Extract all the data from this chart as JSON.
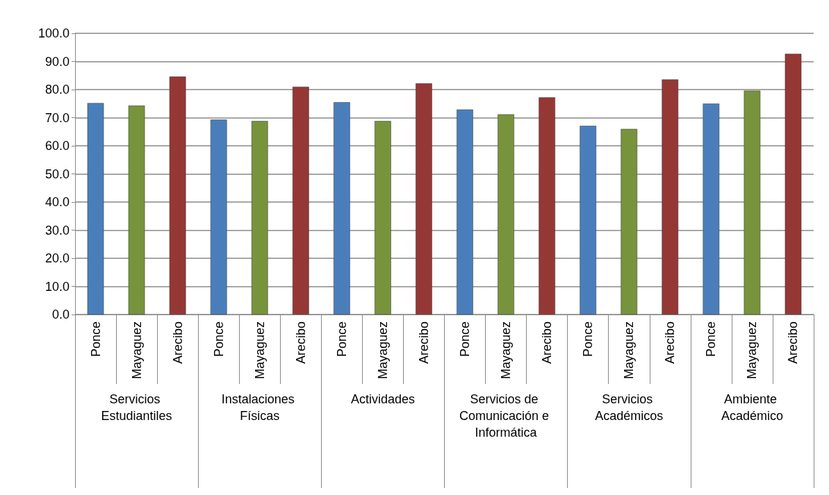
{
  "chart_data": {
    "type": "bar",
    "categories": [
      "Servicios Estudiantiles",
      "Instalaciones Físicas",
      "Actividades",
      "Servicios de Comunicación e Informática",
      "Servicios Académicos",
      "Ambiente Académico"
    ],
    "series": [
      {
        "name": "Ponce",
        "color": "#4a7ebb",
        "values": [
          75.2,
          69.3,
          75.5,
          72.9,
          67.1,
          75.0
        ]
      },
      {
        "name": "Mayaguez",
        "color": "#77933c",
        "values": [
          74.3,
          68.8,
          68.8,
          71.2,
          66.0,
          79.6
        ]
      },
      {
        "name": "Arecibo",
        "color": "#953735",
        "values": [
          84.6,
          81.0,
          82.2,
          77.2,
          83.6,
          92.7
        ]
      }
    ],
    "ylim": [
      0,
      100
    ],
    "yticks": [
      {
        "value": 0,
        "label": "0.0"
      },
      {
        "value": 10,
        "label": "10.0"
      },
      {
        "value": 20,
        "label": "20.0"
      },
      {
        "value": 30,
        "label": "30.0"
      },
      {
        "value": 40,
        "label": "40.0"
      },
      {
        "value": 50,
        "label": "50.0"
      },
      {
        "value": 60,
        "label": "60.0"
      },
      {
        "value": 70,
        "label": "70.0"
      },
      {
        "value": 80,
        "label": "80.0"
      },
      {
        "value": 90,
        "label": "90.0"
      },
      {
        "value": 100,
        "label": "100.0"
      }
    ],
    "grid": "y",
    "legend": false
  }
}
